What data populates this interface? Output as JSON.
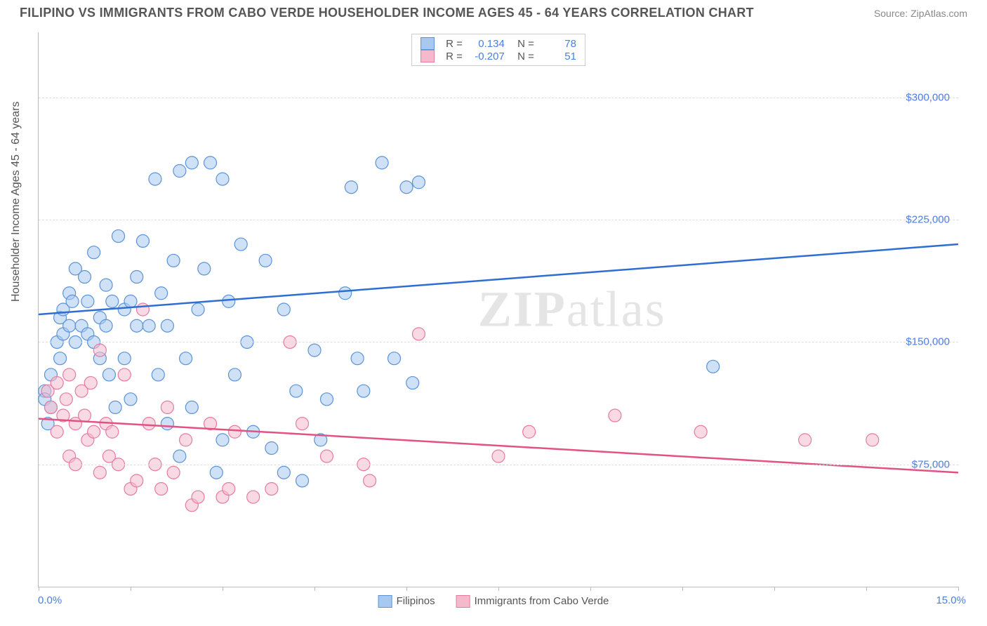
{
  "title": "FILIPINO VS IMMIGRANTS FROM CABO VERDE HOUSEHOLDER INCOME AGES 45 - 64 YEARS CORRELATION CHART",
  "source": "Source: ZipAtlas.com",
  "y_axis_label": "Householder Income Ages 45 - 64 years",
  "chart": {
    "type": "scatter",
    "xlim": [
      0,
      15
    ],
    "ylim": [
      0,
      340000
    ],
    "x_min_label": "0.0%",
    "x_max_label": "15.0%",
    "x_ticks": [
      0,
      1.5,
      3,
      4.5,
      6,
      7.5,
      9,
      10.5,
      12,
      13.5,
      15
    ],
    "y_gridlines": [
      75000,
      150000,
      225000,
      300000
    ],
    "y_tick_labels": [
      "$75,000",
      "$150,000",
      "$225,000",
      "$300,000"
    ],
    "background_color": "#ffffff",
    "grid_color": "#dddddd",
    "axis_color": "#bbbbbb",
    "marker_radius": 9,
    "marker_stroke_width": 1.2,
    "line_width": 2.5,
    "series": [
      {
        "name": "Filipinos",
        "fill_color": "#a8c8ef",
        "fill_opacity": 0.55,
        "stroke_color": "#5b93d8",
        "line_color": "#2f6ed1",
        "R": "0.134",
        "N": "78",
        "trend": {
          "x1": 0,
          "y1": 167000,
          "x2": 15,
          "y2": 210000
        },
        "points": [
          [
            0.1,
            120000
          ],
          [
            0.1,
            115000
          ],
          [
            0.15,
            100000
          ],
          [
            0.2,
            110000
          ],
          [
            0.2,
            130000
          ],
          [
            0.3,
            150000
          ],
          [
            0.35,
            165000
          ],
          [
            0.35,
            140000
          ],
          [
            0.4,
            155000
          ],
          [
            0.4,
            170000
          ],
          [
            0.5,
            160000
          ],
          [
            0.5,
            180000
          ],
          [
            0.55,
            175000
          ],
          [
            0.6,
            150000
          ],
          [
            0.6,
            195000
          ],
          [
            0.7,
            160000
          ],
          [
            0.75,
            190000
          ],
          [
            0.8,
            155000
          ],
          [
            0.8,
            175000
          ],
          [
            0.9,
            205000
          ],
          [
            0.9,
            150000
          ],
          [
            1.0,
            165000
          ],
          [
            1.0,
            140000
          ],
          [
            1.1,
            160000
          ],
          [
            1.1,
            185000
          ],
          [
            1.15,
            130000
          ],
          [
            1.2,
            175000
          ],
          [
            1.25,
            110000
          ],
          [
            1.3,
            215000
          ],
          [
            1.4,
            140000
          ],
          [
            1.4,
            170000
          ],
          [
            1.5,
            175000
          ],
          [
            1.5,
            115000
          ],
          [
            1.6,
            160000
          ],
          [
            1.6,
            190000
          ],
          [
            1.7,
            212000
          ],
          [
            1.8,
            160000
          ],
          [
            1.9,
            250000
          ],
          [
            1.95,
            130000
          ],
          [
            2.0,
            180000
          ],
          [
            2.1,
            100000
          ],
          [
            2.1,
            160000
          ],
          [
            2.2,
            200000
          ],
          [
            2.3,
            255000
          ],
          [
            2.3,
            80000
          ],
          [
            2.4,
            140000
          ],
          [
            2.5,
            260000
          ],
          [
            2.5,
            110000
          ],
          [
            2.6,
            170000
          ],
          [
            2.7,
            195000
          ],
          [
            2.8,
            260000
          ],
          [
            2.9,
            70000
          ],
          [
            3.0,
            90000
          ],
          [
            3.0,
            250000
          ],
          [
            3.1,
            175000
          ],
          [
            3.2,
            130000
          ],
          [
            3.3,
            210000
          ],
          [
            3.4,
            150000
          ],
          [
            3.5,
            95000
          ],
          [
            3.7,
            200000
          ],
          [
            3.8,
            85000
          ],
          [
            4.0,
            170000
          ],
          [
            4.0,
            70000
          ],
          [
            4.2,
            120000
          ],
          [
            4.3,
            65000
          ],
          [
            4.5,
            145000
          ],
          [
            4.6,
            90000
          ],
          [
            4.7,
            115000
          ],
          [
            5.0,
            180000
          ],
          [
            5.1,
            245000
          ],
          [
            5.2,
            140000
          ],
          [
            5.3,
            120000
          ],
          [
            5.6,
            260000
          ],
          [
            5.8,
            140000
          ],
          [
            6.0,
            245000
          ],
          [
            6.1,
            125000
          ],
          [
            6.2,
            248000
          ],
          [
            11.0,
            135000
          ]
        ]
      },
      {
        "name": "Immigrants from Cabo Verde",
        "fill_color": "#f4bacc",
        "fill_opacity": 0.55,
        "stroke_color": "#e77aa2",
        "line_color": "#e25383",
        "R": "-0.207",
        "N": "51",
        "trend": {
          "x1": 0,
          "y1": 103000,
          "x2": 15,
          "y2": 70000
        },
        "points": [
          [
            0.15,
            120000
          ],
          [
            0.2,
            110000
          ],
          [
            0.3,
            125000
          ],
          [
            0.3,
            95000
          ],
          [
            0.4,
            105000
          ],
          [
            0.45,
            115000
          ],
          [
            0.5,
            130000
          ],
          [
            0.5,
            80000
          ],
          [
            0.6,
            75000
          ],
          [
            0.6,
            100000
          ],
          [
            0.7,
            120000
          ],
          [
            0.75,
            105000
          ],
          [
            0.8,
            90000
          ],
          [
            0.85,
            125000
          ],
          [
            0.9,
            95000
          ],
          [
            1.0,
            70000
          ],
          [
            1.0,
            145000
          ],
          [
            1.1,
            100000
          ],
          [
            1.15,
            80000
          ],
          [
            1.2,
            95000
          ],
          [
            1.3,
            75000
          ],
          [
            1.4,
            130000
          ],
          [
            1.5,
            60000
          ],
          [
            1.6,
            65000
          ],
          [
            1.7,
            170000
          ],
          [
            1.8,
            100000
          ],
          [
            1.9,
            75000
          ],
          [
            2.0,
            60000
          ],
          [
            2.1,
            110000
          ],
          [
            2.2,
            70000
          ],
          [
            2.4,
            90000
          ],
          [
            2.5,
            50000
          ],
          [
            2.6,
            55000
          ],
          [
            2.8,
            100000
          ],
          [
            3.0,
            55000
          ],
          [
            3.1,
            60000
          ],
          [
            3.2,
            95000
          ],
          [
            3.5,
            55000
          ],
          [
            3.8,
            60000
          ],
          [
            4.1,
            150000
          ],
          [
            4.3,
            100000
          ],
          [
            4.7,
            80000
          ],
          [
            5.3,
            75000
          ],
          [
            5.4,
            65000
          ],
          [
            6.2,
            155000
          ],
          [
            7.5,
            80000
          ],
          [
            8.0,
            95000
          ],
          [
            9.4,
            105000
          ],
          [
            10.8,
            95000
          ],
          [
            12.5,
            90000
          ],
          [
            13.6,
            90000
          ]
        ]
      }
    ]
  },
  "legend_top": {
    "rows": [
      {
        "swatch_fill": "#a8c8ef",
        "swatch_stroke": "#5b93d8",
        "R": "0.134",
        "N": "78"
      },
      {
        "swatch_fill": "#f4bacc",
        "swatch_stroke": "#e77aa2",
        "R": "-0.207",
        "N": "51"
      }
    ]
  },
  "legend_bottom": [
    {
      "label": "Filipinos",
      "fill": "#a8c8ef",
      "stroke": "#5b93d8"
    },
    {
      "label": "Immigrants from Cabo Verde",
      "fill": "#f4bacc",
      "stroke": "#e77aa2"
    }
  ],
  "watermark": {
    "part1": "ZIP",
    "part2": "atlas"
  }
}
